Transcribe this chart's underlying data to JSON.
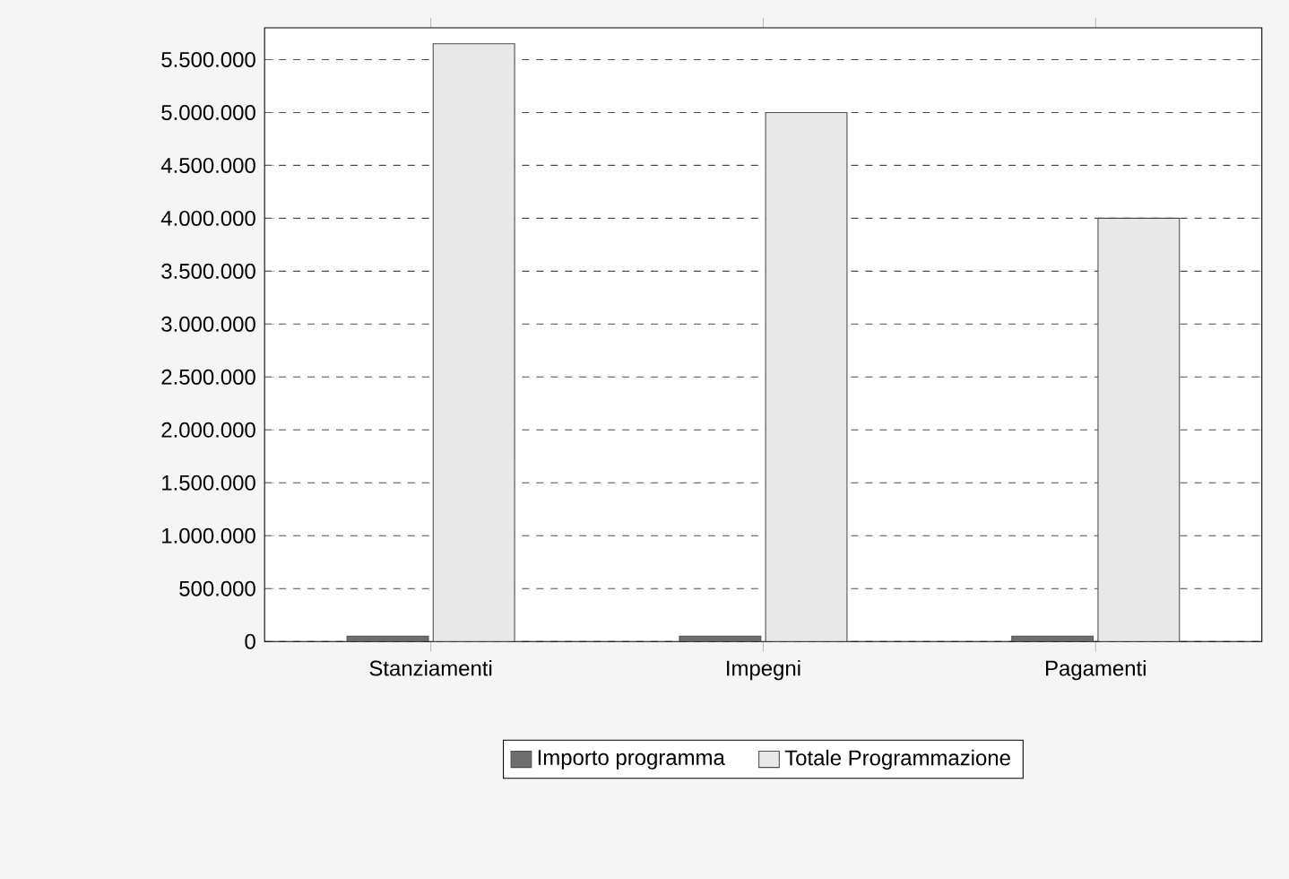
{
  "chart_data": {
    "type": "bar",
    "categories": [
      "Stanziamenti",
      "Impegni",
      "Pagamenti"
    ],
    "series": [
      {
        "name": "Importo programma",
        "color": "#6e6e6e",
        "values": [
          50000,
          50000,
          50000
        ]
      },
      {
        "name": "Totale Programmazione",
        "color": "#e8e8e8",
        "values": [
          5650000,
          5000000,
          4000000
        ]
      }
    ],
    "ylim": [
      0,
      5800000
    ],
    "yticks": [
      {
        "value": 0,
        "label": "0"
      },
      {
        "value": 500000,
        "label": "500.000"
      },
      {
        "value": 1000000,
        "label": "1.000.000"
      },
      {
        "value": 1500000,
        "label": "1.500.000"
      },
      {
        "value": 2000000,
        "label": "2.000.000"
      },
      {
        "value": 2500000,
        "label": "2.500.000"
      },
      {
        "value": 3000000,
        "label": "3.000.000"
      },
      {
        "value": 3500000,
        "label": "3.500.000"
      },
      {
        "value": 4000000,
        "label": "4.000.000"
      },
      {
        "value": 4500000,
        "label": "4.500.000"
      },
      {
        "value": 5000000,
        "label": "5.000.000"
      },
      {
        "value": 5500000,
        "label": "5.500.000"
      }
    ],
    "grid": "y",
    "legend": "bottom"
  }
}
